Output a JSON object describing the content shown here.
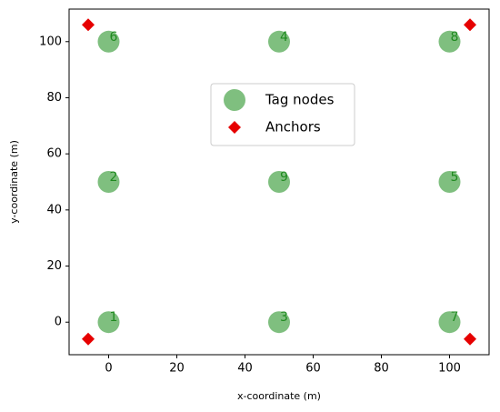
{
  "chart_data": {
    "type": "scatter",
    "xlabel": "x-coordinate (m)",
    "ylabel": "y-coordinate (m)",
    "xlim": [
      -11.6,
      111.6
    ],
    "ylim": [
      -11.6,
      111.6
    ],
    "xticks": [
      0,
      20,
      40,
      60,
      80,
      100
    ],
    "yticks": [
      0,
      20,
      40,
      60,
      80,
      100
    ],
    "grid": false,
    "legend": "upper center",
    "series": [
      {
        "name": "Tag nodes",
        "color": "#7fbf7f",
        "marker": "circle",
        "x": [
          0,
          0,
          50,
          50,
          100,
          0,
          100,
          100,
          50
        ],
        "values": [
          0,
          50,
          0,
          100,
          50,
          100,
          0,
          100,
          50
        ],
        "labels": [
          "1",
          "2",
          "3",
          "4",
          "5",
          "6",
          "7",
          "8",
          "9"
        ],
        "label_color": "#1f8a1f"
      },
      {
        "name": "Anchors",
        "color": "#e60000",
        "marker": "diamond",
        "x": [
          -6,
          -6,
          106,
          106
        ],
        "values": [
          -6,
          106,
          106,
          -6
        ]
      }
    ]
  }
}
